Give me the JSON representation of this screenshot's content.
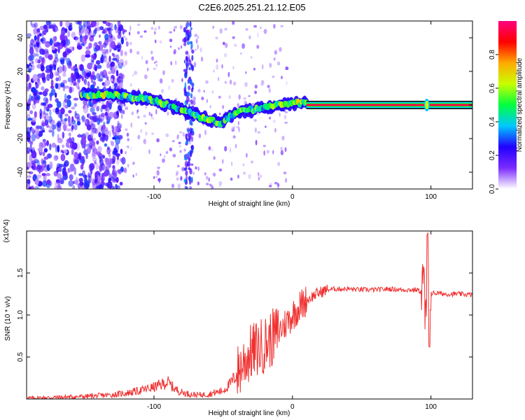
{
  "title": "C2E6.2025.251.21.12.E05",
  "chart_data": [
    {
      "type": "heatmap",
      "name": "spectrogram",
      "xlabel": "Height of straight line (km)",
      "ylabel": "Frequency (Hz)",
      "xlim": [
        -192,
        130
      ],
      "ylim": [
        -50,
        50
      ],
      "xticks": [
        -100,
        0,
        100
      ],
      "yticks": [
        -40,
        -20,
        0,
        20,
        40
      ],
      "colorbar": {
        "label": "Normalized spectral amplitude",
        "range": [
          0,
          1
        ],
        "ticks": [
          "0.0",
          "0.2",
          "0.4",
          "0.6",
          "0.8"
        ],
        "tick_values": [
          0,
          0.2,
          0.4,
          0.6,
          0.8
        ],
        "colors": [
          "#ffffff",
          "#7b2cff",
          "#2200ff",
          "#00c8ff",
          "#00ff40",
          "#c8ff00",
          "#ffaa00",
          "#ff0000",
          "#ff007f"
        ]
      },
      "ridge": [
        {
          "x": -152,
          "y": 6,
          "amp": 0.5
        },
        {
          "x": -140,
          "y": 6,
          "amp": 0.75
        },
        {
          "x": -130,
          "y": 6,
          "amp": 0.65
        },
        {
          "x": -120,
          "y": 5,
          "amp": 0.55
        },
        {
          "x": -110,
          "y": 4,
          "amp": 0.6
        },
        {
          "x": -100,
          "y": 3,
          "amp": 0.55
        },
        {
          "x": -90,
          "y": 0,
          "amp": 0.5
        },
        {
          "x": -80,
          "y": -3,
          "amp": 0.45
        },
        {
          "x": -70,
          "y": -6,
          "amp": 0.5
        },
        {
          "x": -60,
          "y": -9,
          "amp": 0.55
        },
        {
          "x": -52,
          "y": -11,
          "amp": 0.45
        },
        {
          "x": -40,
          "y": -4,
          "amp": 0.5
        },
        {
          "x": -30,
          "y": -3,
          "amp": 0.5
        },
        {
          "x": -20,
          "y": -1,
          "amp": 0.55
        },
        {
          "x": -10,
          "y": 0,
          "amp": 0.65
        },
        {
          "x": 0,
          "y": 1,
          "amp": 0.7
        },
        {
          "x": 8,
          "y": 1,
          "amp": 0.7
        },
        {
          "x": 20,
          "y": 0,
          "amp": 0.9
        },
        {
          "x": 60,
          "y": 0,
          "amp": 0.92
        },
        {
          "x": 96,
          "y": 0,
          "amp": 0.9
        },
        {
          "x": 130,
          "y": 0,
          "amp": 0.9
        }
      ]
    },
    {
      "type": "line",
      "name": "snr",
      "xlabel": "Height of straight line (km)",
      "ylabel": "SNR (10 * v/v)",
      "scale_label": "(x10^4)",
      "xlim": [
        -192,
        130
      ],
      "ylim": [
        0,
        2.0
      ],
      "xticks": [
        -100,
        0,
        100
      ],
      "yticks": [
        0.5,
        1.0,
        1.5
      ],
      "ytick_labels": [
        "0.5",
        "1.0",
        "1.5"
      ],
      "color": "#f03030",
      "series": [
        {
          "name": "SNR",
          "x": [
            -192,
            -170,
            -150,
            -130,
            -120,
            -110,
            -100,
            -95,
            -90,
            -85,
            -80,
            -75,
            -70,
            -65,
            -60,
            -55,
            -50,
            -45,
            -40,
            -35,
            -30,
            -25,
            -20,
            -15,
            -10,
            -5,
            0,
            5,
            10,
            15,
            20,
            25,
            30,
            40,
            50,
            60,
            70,
            80,
            90,
            95,
            97,
            98,
            100,
            102,
            105,
            110,
            120,
            130
          ],
          "y": [
            0.01,
            0.02,
            0.03,
            0.05,
            0.07,
            0.1,
            0.14,
            0.17,
            0.2,
            0.12,
            0.08,
            0.06,
            0.05,
            0.05,
            0.06,
            0.08,
            0.1,
            0.18,
            0.3,
            0.45,
            0.55,
            0.6,
            0.65,
            0.72,
            0.8,
            0.9,
            1.0,
            1.1,
            1.17,
            1.23,
            1.27,
            1.3,
            1.31,
            1.31,
            1.3,
            1.3,
            1.31,
            1.3,
            1.3,
            1.26,
            1.25,
            1.28,
            1.26,
            1.26,
            1.26,
            1.25,
            1.25,
            1.24
          ]
        }
      ]
    }
  ]
}
